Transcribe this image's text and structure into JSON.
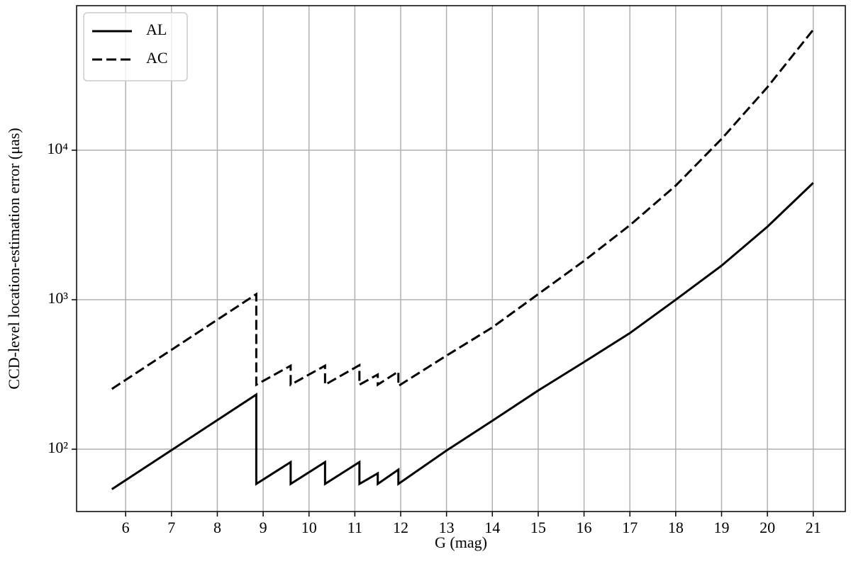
{
  "chart_data": {
    "type": "line",
    "xlabel": "G (mag)",
    "ylabel": "CCD-level location-estimation error (μas)",
    "x": [
      5.7,
      8.85,
      8.85,
      9.6,
      9.6,
      10.35,
      10.35,
      11.1,
      11.1,
      11.5,
      11.5,
      11.95,
      11.95,
      13,
      14,
      15,
      16,
      17,
      18,
      19,
      20,
      21
    ],
    "series": [
      {
        "name": "AL",
        "color": "#000000",
        "dash": "solid",
        "values": [
          54,
          232,
          58.6,
          82,
          58.6,
          82,
          58.6,
          82,
          58.6,
          69,
          58.6,
          73,
          58.6,
          98,
          155,
          247,
          383,
          598,
          1000,
          1690,
          3080,
          6050
        ]
      },
      {
        "name": "AC",
        "color": "#000000",
        "dash": "dashed",
        "values": [
          253,
          1090,
          270,
          362,
          270,
          362,
          270,
          365,
          270,
          316,
          270,
          331,
          265,
          423,
          653,
          1090,
          1820,
          3150,
          5800,
          11900,
          26400,
          64000
        ]
      }
    ],
    "xlim": [
      4.93,
      21.7
    ],
    "xticks": [
      6,
      7,
      8,
      9,
      10,
      11,
      12,
      13,
      14,
      15,
      16,
      17,
      18,
      19,
      20,
      21
    ],
    "ylim": [
      38.3,
      92700
    ],
    "yscale": "log",
    "yticks": [
      {
        "value": 100,
        "label": "10²"
      },
      {
        "value": 1000,
        "label": "10³"
      },
      {
        "value": 10000,
        "label": "10⁴"
      }
    ],
    "grid": true,
    "legend": "upper left"
  }
}
